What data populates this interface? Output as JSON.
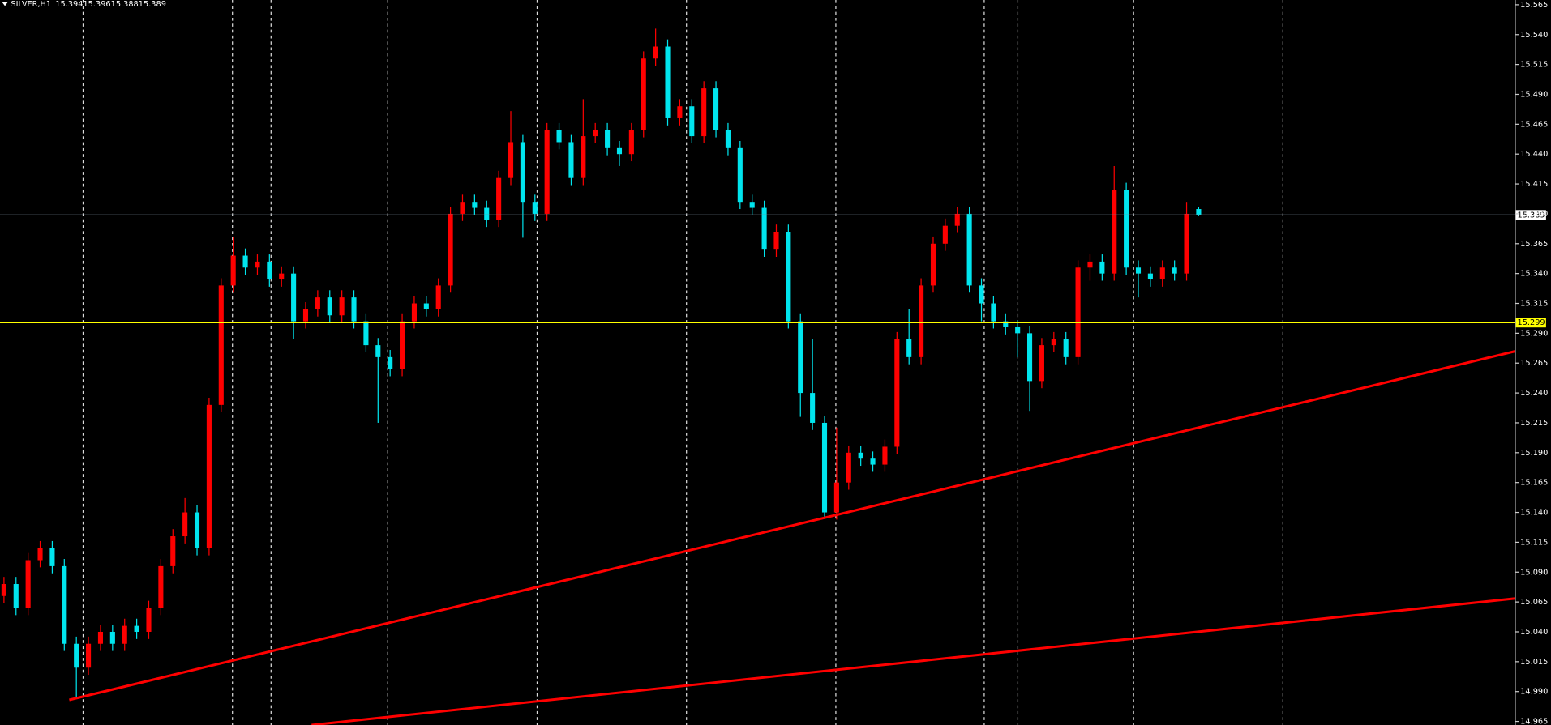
{
  "chart_data": {
    "type": "candlestick",
    "symbol": "SILVER,H1",
    "up_color": "#ff0000",
    "down_color": "#00e5ee",
    "open": [
      15.07,
      15.08,
      15.06,
      15.1,
      15.11,
      15.095,
      15.03,
      15.01,
      15.03,
      15.04,
      15.03,
      15.045,
      15.04,
      15.06,
      15.095,
      15.12,
      15.14,
      15.11,
      15.23,
      15.33,
      15.355,
      15.345,
      15.35,
      15.335,
      15.34,
      15.3,
      15.31,
      15.32,
      15.305,
      15.32,
      15.3,
      15.28,
      15.27,
      15.26,
      15.3,
      15.315,
      15.31,
      15.33,
      15.39,
      15.4,
      15.395,
      15.385,
      15.42,
      15.45,
      15.4,
      15.39,
      15.46,
      15.45,
      15.42,
      15.455,
      15.46,
      15.445,
      15.44,
      15.46,
      15.52,
      15.53,
      15.47,
      15.48,
      15.455,
      15.495,
      15.46,
      15.445,
      15.4,
      15.395,
      15.36,
      15.375,
      15.3,
      15.24,
      15.215,
      15.14,
      15.165,
      15.19,
      15.185,
      15.18,
      15.195,
      15.285,
      15.27,
      15.33,
      15.365,
      15.38,
      15.39,
      15.33,
      15.315,
      15.3,
      15.295,
      15.29,
      15.25,
      15.28,
      15.285,
      15.27,
      15.345,
      15.35,
      15.34,
      15.41,
      15.345,
      15.34,
      15.335,
      15.345,
      15.34,
      15.394
    ],
    "high": [
      15.086,
      15.086,
      15.106,
      15.116,
      15.116,
      15.101,
      15.036,
      15.036,
      15.046,
      15.046,
      15.051,
      15.051,
      15.066,
      15.101,
      15.126,
      15.152,
      15.146,
      15.236,
      15.336,
      15.371,
      15.361,
      15.356,
      15.356,
      15.346,
      15.346,
      15.316,
      15.326,
      15.326,
      15.326,
      15.326,
      15.306,
      15.286,
      15.276,
      15.306,
      15.321,
      15.321,
      15.336,
      15.396,
      15.406,
      15.406,
      15.401,
      15.426,
      15.476,
      15.456,
      15.406,
      15.466,
      15.466,
      15.456,
      15.486,
      15.466,
      15.466,
      15.451,
      15.466,
      15.526,
      15.545,
      15.536,
      15.486,
      15.486,
      15.501,
      15.501,
      15.466,
      15.451,
      15.406,
      15.401,
      15.381,
      15.381,
      15.306,
      15.285,
      15.221,
      15.211,
      15.196,
      15.196,
      15.191,
      15.201,
      15.291,
      15.31,
      15.336,
      15.371,
      15.386,
      15.396,
      15.396,
      15.336,
      15.321,
      15.306,
      15.301,
      15.296,
      15.286,
      15.291,
      15.291,
      15.351,
      15.356,
      15.356,
      15.43,
      15.416,
      15.351,
      15.346,
      15.351,
      15.351,
      15.4,
      15.396
    ],
    "low": [
      15.064,
      15.054,
      15.054,
      15.094,
      15.089,
      15.024,
      14.985,
      15.004,
      15.024,
      15.024,
      15.024,
      15.034,
      15.034,
      15.054,
      15.089,
      15.114,
      15.104,
      15.104,
      15.224,
      15.324,
      15.339,
      15.339,
      15.329,
      15.329,
      15.285,
      15.294,
      15.304,
      15.299,
      15.299,
      15.294,
      15.274,
      15.215,
      15.254,
      15.254,
      15.294,
      15.304,
      15.304,
      15.324,
      15.384,
      15.389,
      15.379,
      15.379,
      15.414,
      15.37,
      15.384,
      15.384,
      15.444,
      15.414,
      15.414,
      15.449,
      15.439,
      15.43,
      15.434,
      15.454,
      15.514,
      15.464,
      15.464,
      15.449,
      15.449,
      15.454,
      15.439,
      15.394,
      15.389,
      15.354,
      15.354,
      15.294,
      15.22,
      15.209,
      15.135,
      15.134,
      15.159,
      15.179,
      15.174,
      15.174,
      15.189,
      15.264,
      15.264,
      15.324,
      15.359,
      15.374,
      15.324,
      15.3,
      15.294,
      15.289,
      15.27,
      15.225,
      15.244,
      15.274,
      15.264,
      15.264,
      15.334,
      15.334,
      15.334,
      15.339,
      15.32,
      15.329,
      15.329,
      15.334,
      15.334,
      15.388
    ],
    "close": [
      15.08,
      15.06,
      15.1,
      15.11,
      15.095,
      15.03,
      15.01,
      15.03,
      15.04,
      15.03,
      15.045,
      15.04,
      15.06,
      15.095,
      15.12,
      15.14,
      15.11,
      15.23,
      15.33,
      15.355,
      15.345,
      15.35,
      15.335,
      15.34,
      15.3,
      15.31,
      15.32,
      15.305,
      15.32,
      15.3,
      15.28,
      15.27,
      15.26,
      15.3,
      15.315,
      15.31,
      15.33,
      15.39,
      15.4,
      15.395,
      15.385,
      15.42,
      15.45,
      15.4,
      15.39,
      15.46,
      15.45,
      15.42,
      15.455,
      15.46,
      15.445,
      15.44,
      15.46,
      15.52,
      15.53,
      15.47,
      15.48,
      15.455,
      15.495,
      15.46,
      15.445,
      15.4,
      15.395,
      15.36,
      15.375,
      15.3,
      15.24,
      15.215,
      15.14,
      15.165,
      15.19,
      15.185,
      15.18,
      15.195,
      15.285,
      15.27,
      15.33,
      15.365,
      15.38,
      15.39,
      15.33,
      15.315,
      15.3,
      15.295,
      15.29,
      15.25,
      15.28,
      15.285,
      15.27,
      15.345,
      15.35,
      15.34,
      15.41,
      15.345,
      15.34,
      15.335,
      15.345,
      15.34,
      15.39,
      15.389
    ],
    "ylim": [
      14.962,
      15.569
    ],
    "yticks": [
      14.965,
      {
        "value": 14.99,
        "label": "14.990"
      },
      15.015,
      {
        "value": 15.04,
        "label": "15.040"
      },
      15.065,
      {
        "value": 15.09,
        "label": "15.090"
      },
      15.115,
      {
        "value": 15.14,
        "label": "15.140"
      },
      15.165,
      {
        "value": 15.19,
        "label": "15.190"
      },
      15.215,
      {
        "value": 15.24,
        "label": "15.240"
      },
      15.265,
      {
        "value": 15.29,
        "label": "15.290"
      },
      15.315,
      {
        "value": 15.34,
        "label": "15.340"
      },
      15.365,
      {
        "value": 15.39,
        "label": "15.390"
      },
      15.415,
      {
        "value": 15.44,
        "label": "15.440"
      },
      15.465,
      {
        "value": 15.49,
        "label": "15.490"
      },
      15.515,
      {
        "value": 15.54,
        "label": "15.540"
      },
      15.565
    ],
    "hlines": [
      {
        "value": 15.299,
        "color": "#ffff00"
      }
    ],
    "trendlines": [
      {
        "x": [
          5.41,
          125.25
        ],
        "y": [
          14.983,
          15.275
        ],
        "color": "#ff0000"
      },
      {
        "x": [
          25.49,
          125.25
        ],
        "y": [
          14.962,
          15.068
        ],
        "color": "#ff0000"
      }
    ]
  }
}
